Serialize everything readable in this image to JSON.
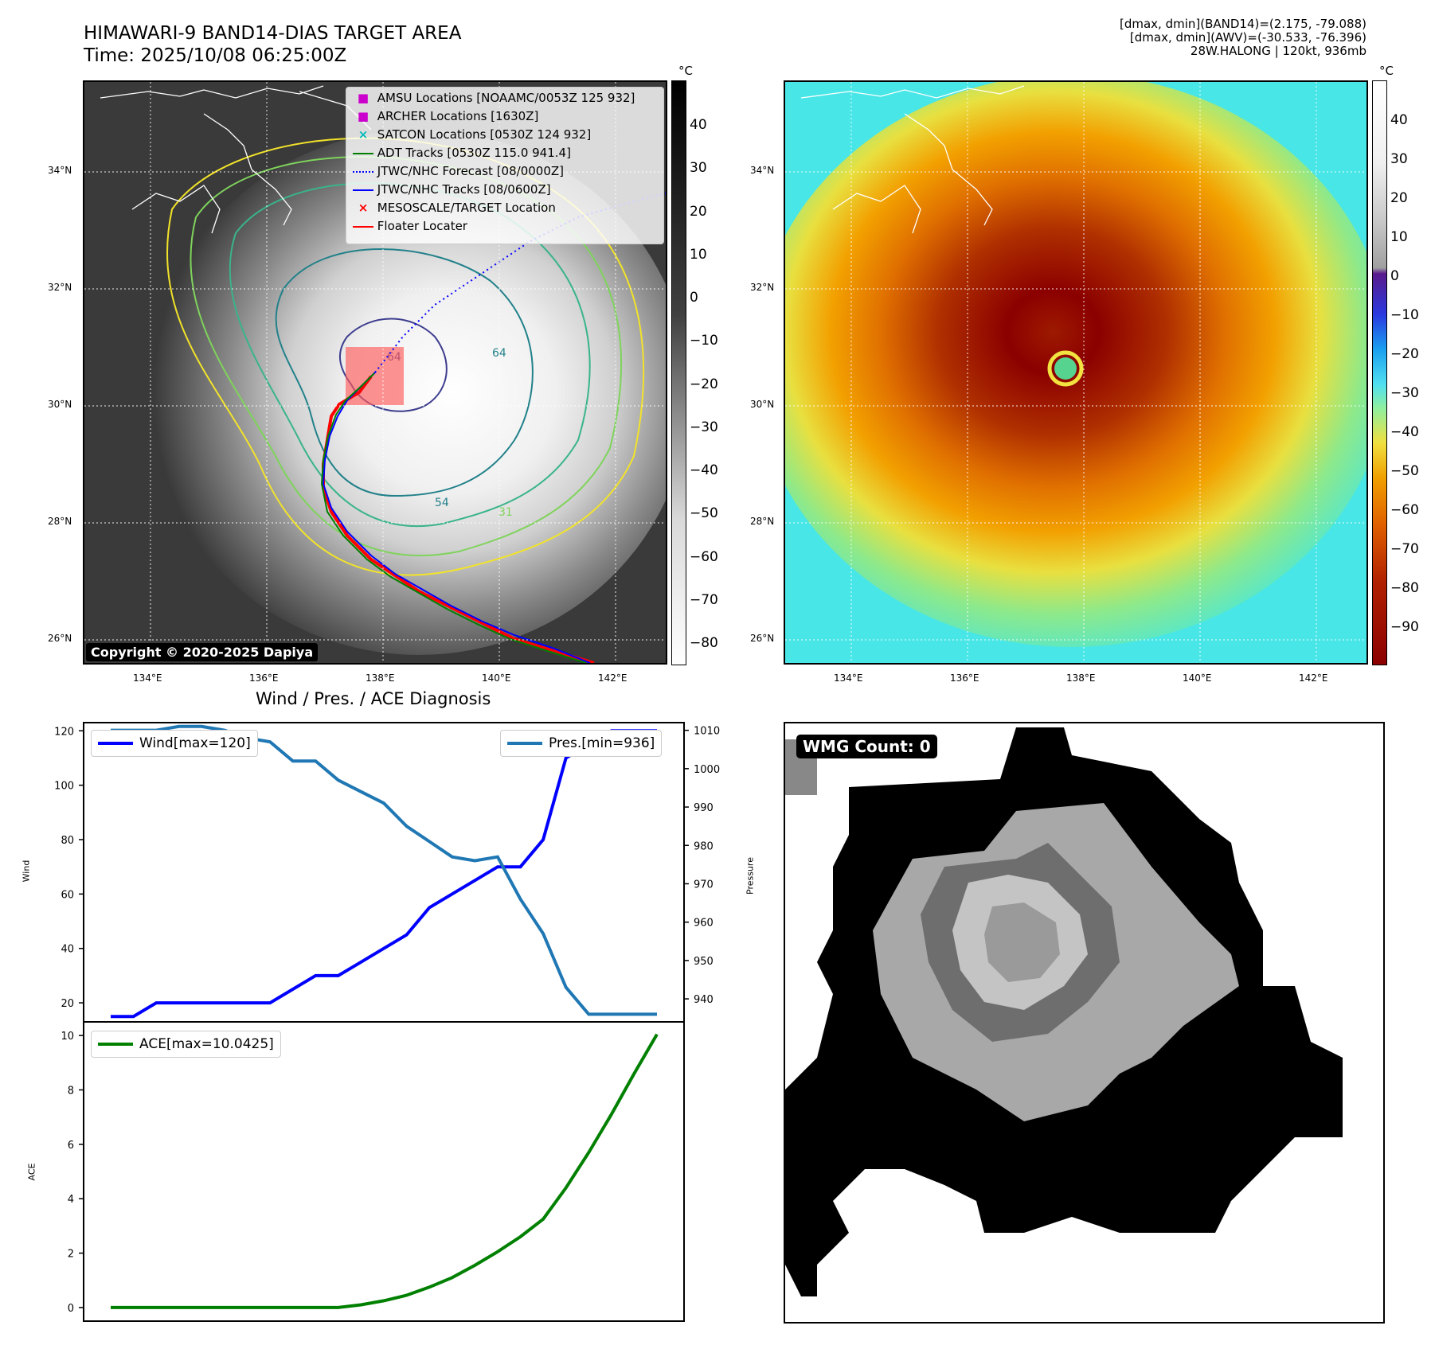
{
  "header": {
    "title_line1": "HIMAWARI-9 BAND14-DIAS TARGET AREA",
    "title_line2": "Time: 2025/10/08 06:25:00Z",
    "right_line1": "[dmax, dmin](BAND14)=(2.175, -79.088)",
    "right_line2": "[dmax, dmin](AWV)=(-30.533, -76.396)",
    "right_line3": "28W.HALONG | 120kt, 936mb"
  },
  "map_axes": {
    "lat_labels": [
      "34°N",
      "32°N",
      "30°N",
      "28°N",
      "26°N"
    ],
    "lon_labels": [
      "134°E",
      "136°E",
      "138°E",
      "140°E",
      "142°E"
    ]
  },
  "ir_colorbar": {
    "unit": "°C",
    "ticks": [
      "40",
      "30",
      "20",
      "10",
      "0",
      "−10",
      "−20",
      "−30",
      "−40",
      "−50",
      "−60",
      "−70",
      "−80"
    ]
  },
  "awv_colorbar": {
    "unit": "°C",
    "ticks": [
      "40",
      "30",
      "20",
      "10",
      "0",
      "−10",
      "−20",
      "−30",
      "−40",
      "−50",
      "−60",
      "−70",
      "−80",
      "−90"
    ]
  },
  "map_legend": [
    {
      "label": "AMSU Locations [NOAAMC/0053Z 125 932]",
      "color": "#cc00cc",
      "marker": "square"
    },
    {
      "label": "ARCHER Locations [1630Z]",
      "color": "#cc00cc",
      "marker": "square"
    },
    {
      "label": "SATCON Locations [0530Z 124 932]",
      "color": "#00bbbb",
      "marker": "x"
    },
    {
      "label": "ADT Tracks [0530Z 115.0 941.4]",
      "color": "#008000",
      "marker": "line"
    },
    {
      "label": "JTWC/NHC Forecast [08/0000Z]",
      "color": "#0000ff",
      "marker": "dotted"
    },
    {
      "label": "JTWC/NHC Tracks [08/0600Z]",
      "color": "#0000ff",
      "marker": "line-dot"
    },
    {
      "label": "MESOSCALE/TARGET Location",
      "color": "#ff0000",
      "marker": "x"
    },
    {
      "label": "Floater Locater",
      "color": "#ff0000",
      "marker": "line"
    }
  ],
  "contour_labels": [
    "64",
    "64",
    "54",
    "31"
  ],
  "copyright": "Copyright © 2020-2025 Dapiya",
  "wmg_label": "WMG Count: 0",
  "colors": {
    "wind": "#0000ff",
    "pressure": "#1f77b4",
    "ace": "#008000",
    "track": "#ff0000"
  },
  "chart_data": [
    {
      "type": "line",
      "title": "Wind / Pres. / ACE Diagnosis",
      "ylabel": "Wind",
      "y2label": "Pressure",
      "ylim": [
        13,
        123
      ],
      "y2lim": [
        934,
        1012
      ],
      "yticks": [
        20,
        40,
        60,
        80,
        100,
        120
      ],
      "y2ticks": [
        940,
        950,
        960,
        970,
        980,
        990,
        1000,
        1010
      ],
      "x": [
        0,
        1,
        2,
        3,
        4,
        5,
        6,
        7,
        8,
        9,
        10,
        11,
        12,
        13,
        14,
        15,
        16,
        17,
        18,
        19,
        20,
        21,
        22,
        23,
        24
      ],
      "series": [
        {
          "name": "Wind[max=120]",
          "axis": "left",
          "values": [
            15,
            15,
            20,
            20,
            20,
            20,
            20,
            20,
            25,
            30,
            30,
            35,
            40,
            45,
            55,
            60,
            65,
            70,
            70,
            80,
            110,
            115,
            120,
            120,
            120
          ]
        },
        {
          "name": "Pres.[min=936]",
          "axis": "right",
          "values": [
            1010,
            1010,
            1010,
            1011,
            1011,
            1010,
            1008,
            1007,
            1002,
            1002,
            997,
            994,
            991,
            985,
            981,
            977,
            976,
            977,
            966,
            957,
            943,
            936,
            936,
            936,
            936
          ]
        }
      ]
    },
    {
      "type": "line",
      "ylabel": "ACE",
      "ylim": [
        -0.5,
        10.5
      ],
      "yticks": [
        0,
        2,
        4,
        6,
        8,
        10
      ],
      "x": [
        0,
        1,
        2,
        3,
        4,
        5,
        6,
        7,
        8,
        9,
        10,
        11,
        12,
        13,
        14,
        15,
        16,
        17,
        18,
        19,
        20,
        21,
        22,
        23,
        24
      ],
      "series": [
        {
          "name": "ACE[max=10.0425]",
          "values": [
            0,
            0,
            0,
            0,
            0,
            0,
            0,
            0,
            0,
            0,
            0,
            0.1,
            0.25,
            0.45,
            0.75,
            1.1,
            1.55,
            2.05,
            2.6,
            3.25,
            4.4,
            5.7,
            7.1,
            8.6,
            10.0425
          ]
        }
      ]
    }
  ]
}
